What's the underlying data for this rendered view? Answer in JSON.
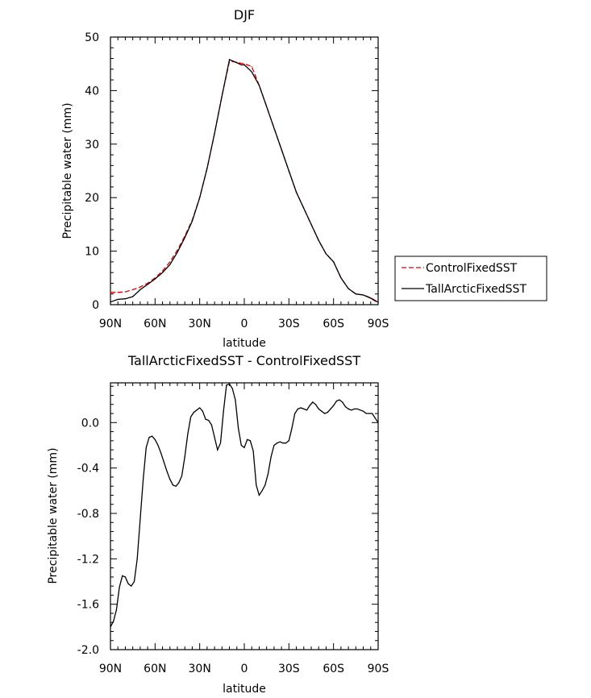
{
  "chart_data": [
    {
      "type": "line",
      "title": "DJF",
      "xlabel": "latitude",
      "ylabel": "Precipitable water (mm)",
      "xlim": [
        90,
        -90
      ],
      "ylim": [
        0,
        50
      ],
      "xticks": [
        90,
        60,
        30,
        0,
        -30,
        -60,
        -90
      ],
      "xtick_labels": [
        "90N",
        "60N",
        "30N",
        "0",
        "30S",
        "60S",
        "90S"
      ],
      "yticks": [
        0,
        10,
        20,
        30,
        40,
        50
      ],
      "ytick_labels": [
        "0",
        "10",
        "20",
        "30",
        "40",
        "50"
      ],
      "legend_position": "right",
      "series": [
        {
          "name": "ControlFixedSST",
          "color": "#e00000",
          "dash": "dashed",
          "x": [
            90,
            85,
            80,
            75,
            70,
            65,
            60,
            55,
            50,
            45,
            40,
            35,
            30,
            25,
            20,
            15,
            10,
            5,
            2,
            0,
            -2,
            -5,
            -10,
            -15,
            -20,
            -25,
            -30,
            -35,
            -40,
            -45,
            -50,
            -55,
            -60,
            -65,
            -70,
            -75,
            -80,
            -85,
            -88,
            -90
          ],
          "y": [
            2.3,
            2.3,
            2.4,
            2.8,
            3.3,
            4.0,
            5.0,
            6.3,
            8.0,
            10.2,
            12.8,
            15.8,
            20.0,
            25.5,
            32.0,
            39.0,
            45.5,
            45.3,
            45.1,
            45.0,
            44.8,
            44.5,
            41.0,
            37.0,
            33.0,
            29.0,
            25.0,
            21.0,
            18.0,
            15.0,
            12.0,
            9.5,
            8.0,
            5.0,
            3.0,
            2.0,
            1.8,
            1.3,
            0.8,
            0.6
          ]
        },
        {
          "name": "TallArcticFixedSST",
          "color": "#000000",
          "dash": "solid",
          "x": [
            90,
            85,
            80,
            75,
            70,
            65,
            60,
            55,
            50,
            45,
            40,
            35,
            30,
            25,
            20,
            15,
            10,
            5,
            2,
            0,
            -2,
            -5,
            -10,
            -15,
            -20,
            -25,
            -30,
            -35,
            -40,
            -45,
            -50,
            -55,
            -60,
            -65,
            -70,
            -75,
            -80,
            -85,
            -88,
            -90
          ],
          "y": [
            0.5,
            1.0,
            1.1,
            1.5,
            2.8,
            3.8,
            4.8,
            6.0,
            7.5,
            9.8,
            12.5,
            15.6,
            20.0,
            25.5,
            32.0,
            39.0,
            45.8,
            45.2,
            44.8,
            44.8,
            44.3,
            43.5,
            41.0,
            37.0,
            33.0,
            29.0,
            25.0,
            21.0,
            18.0,
            15.0,
            12.0,
            9.5,
            8.0,
            5.0,
            3.0,
            2.0,
            1.8,
            1.2,
            0.7,
            0.5
          ]
        }
      ]
    },
    {
      "type": "line",
      "title": "TallArcticFixedSST - ControlFixedSST",
      "xlabel": "latitude",
      "ylabel": "Precipitable water (mm)",
      "xlim": [
        90,
        -90
      ],
      "ylim": [
        -2.0,
        0.35
      ],
      "xticks": [
        90,
        60,
        30,
        0,
        -30,
        -60,
        -90
      ],
      "xtick_labels": [
        "90N",
        "60N",
        "30N",
        "0",
        "30S",
        "60S",
        "90S"
      ],
      "yticks": [
        -2.0,
        -1.6,
        -1.2,
        -0.8,
        -0.4,
        0.0
      ],
      "ytick_labels": [
        "-2.0",
        "-1.6",
        "-1.2",
        "-0.8",
        "-0.4",
        "0.0"
      ],
      "series": [
        {
          "color": "#000000",
          "dash": "solid",
          "x": [
            90,
            88,
            86,
            84,
            82,
            80,
            78,
            76,
            74,
            72,
            70,
            68,
            66,
            64,
            62,
            60,
            58,
            56,
            54,
            52,
            50,
            48,
            46,
            44,
            42,
            40,
            38,
            36,
            34,
            32,
            30,
            28,
            26,
            24,
            22,
            20,
            18,
            16,
            14,
            12,
            10,
            8,
            6,
            4,
            2,
            0,
            -2,
            -4,
            -6,
            -8,
            -10,
            -12,
            -14,
            -16,
            -18,
            -20,
            -22,
            -24,
            -26,
            -28,
            -30,
            -32,
            -34,
            -36,
            -38,
            -40,
            -42,
            -44,
            -46,
            -48,
            -50,
            -52,
            -54,
            -56,
            -58,
            -60,
            -62,
            -64,
            -66,
            -68,
            -70,
            -72,
            -74,
            -76,
            -78,
            -80,
            -82,
            -84,
            -86,
            -88,
            -90
          ],
          "y": [
            -1.8,
            -1.75,
            -1.65,
            -1.45,
            -1.35,
            -1.36,
            -1.42,
            -1.44,
            -1.4,
            -1.2,
            -0.85,
            -0.5,
            -0.22,
            -0.13,
            -0.12,
            -0.15,
            -0.2,
            -0.27,
            -0.35,
            -0.43,
            -0.5,
            -0.55,
            -0.56,
            -0.53,
            -0.47,
            -0.3,
            -0.1,
            0.05,
            0.09,
            0.11,
            0.13,
            0.1,
            0.03,
            0.02,
            -0.02,
            -0.13,
            -0.24,
            -0.18,
            0.1,
            0.33,
            0.34,
            0.3,
            0.2,
            -0.05,
            -0.2,
            -0.22,
            -0.15,
            -0.16,
            -0.25,
            -0.55,
            -0.64,
            -0.6,
            -0.55,
            -0.45,
            -0.3,
            -0.2,
            -0.18,
            -0.17,
            -0.18,
            -0.18,
            -0.16,
            -0.05,
            0.08,
            0.12,
            0.13,
            0.12,
            0.11,
            0.15,
            0.18,
            0.16,
            0.12,
            0.1,
            0.08,
            0.09,
            0.12,
            0.15,
            0.19,
            0.2,
            0.18,
            0.14,
            0.12,
            0.11,
            0.12,
            0.12,
            0.11,
            0.1,
            0.08,
            0.08,
            0.08,
            0.04,
            0.0
          ]
        }
      ]
    }
  ]
}
